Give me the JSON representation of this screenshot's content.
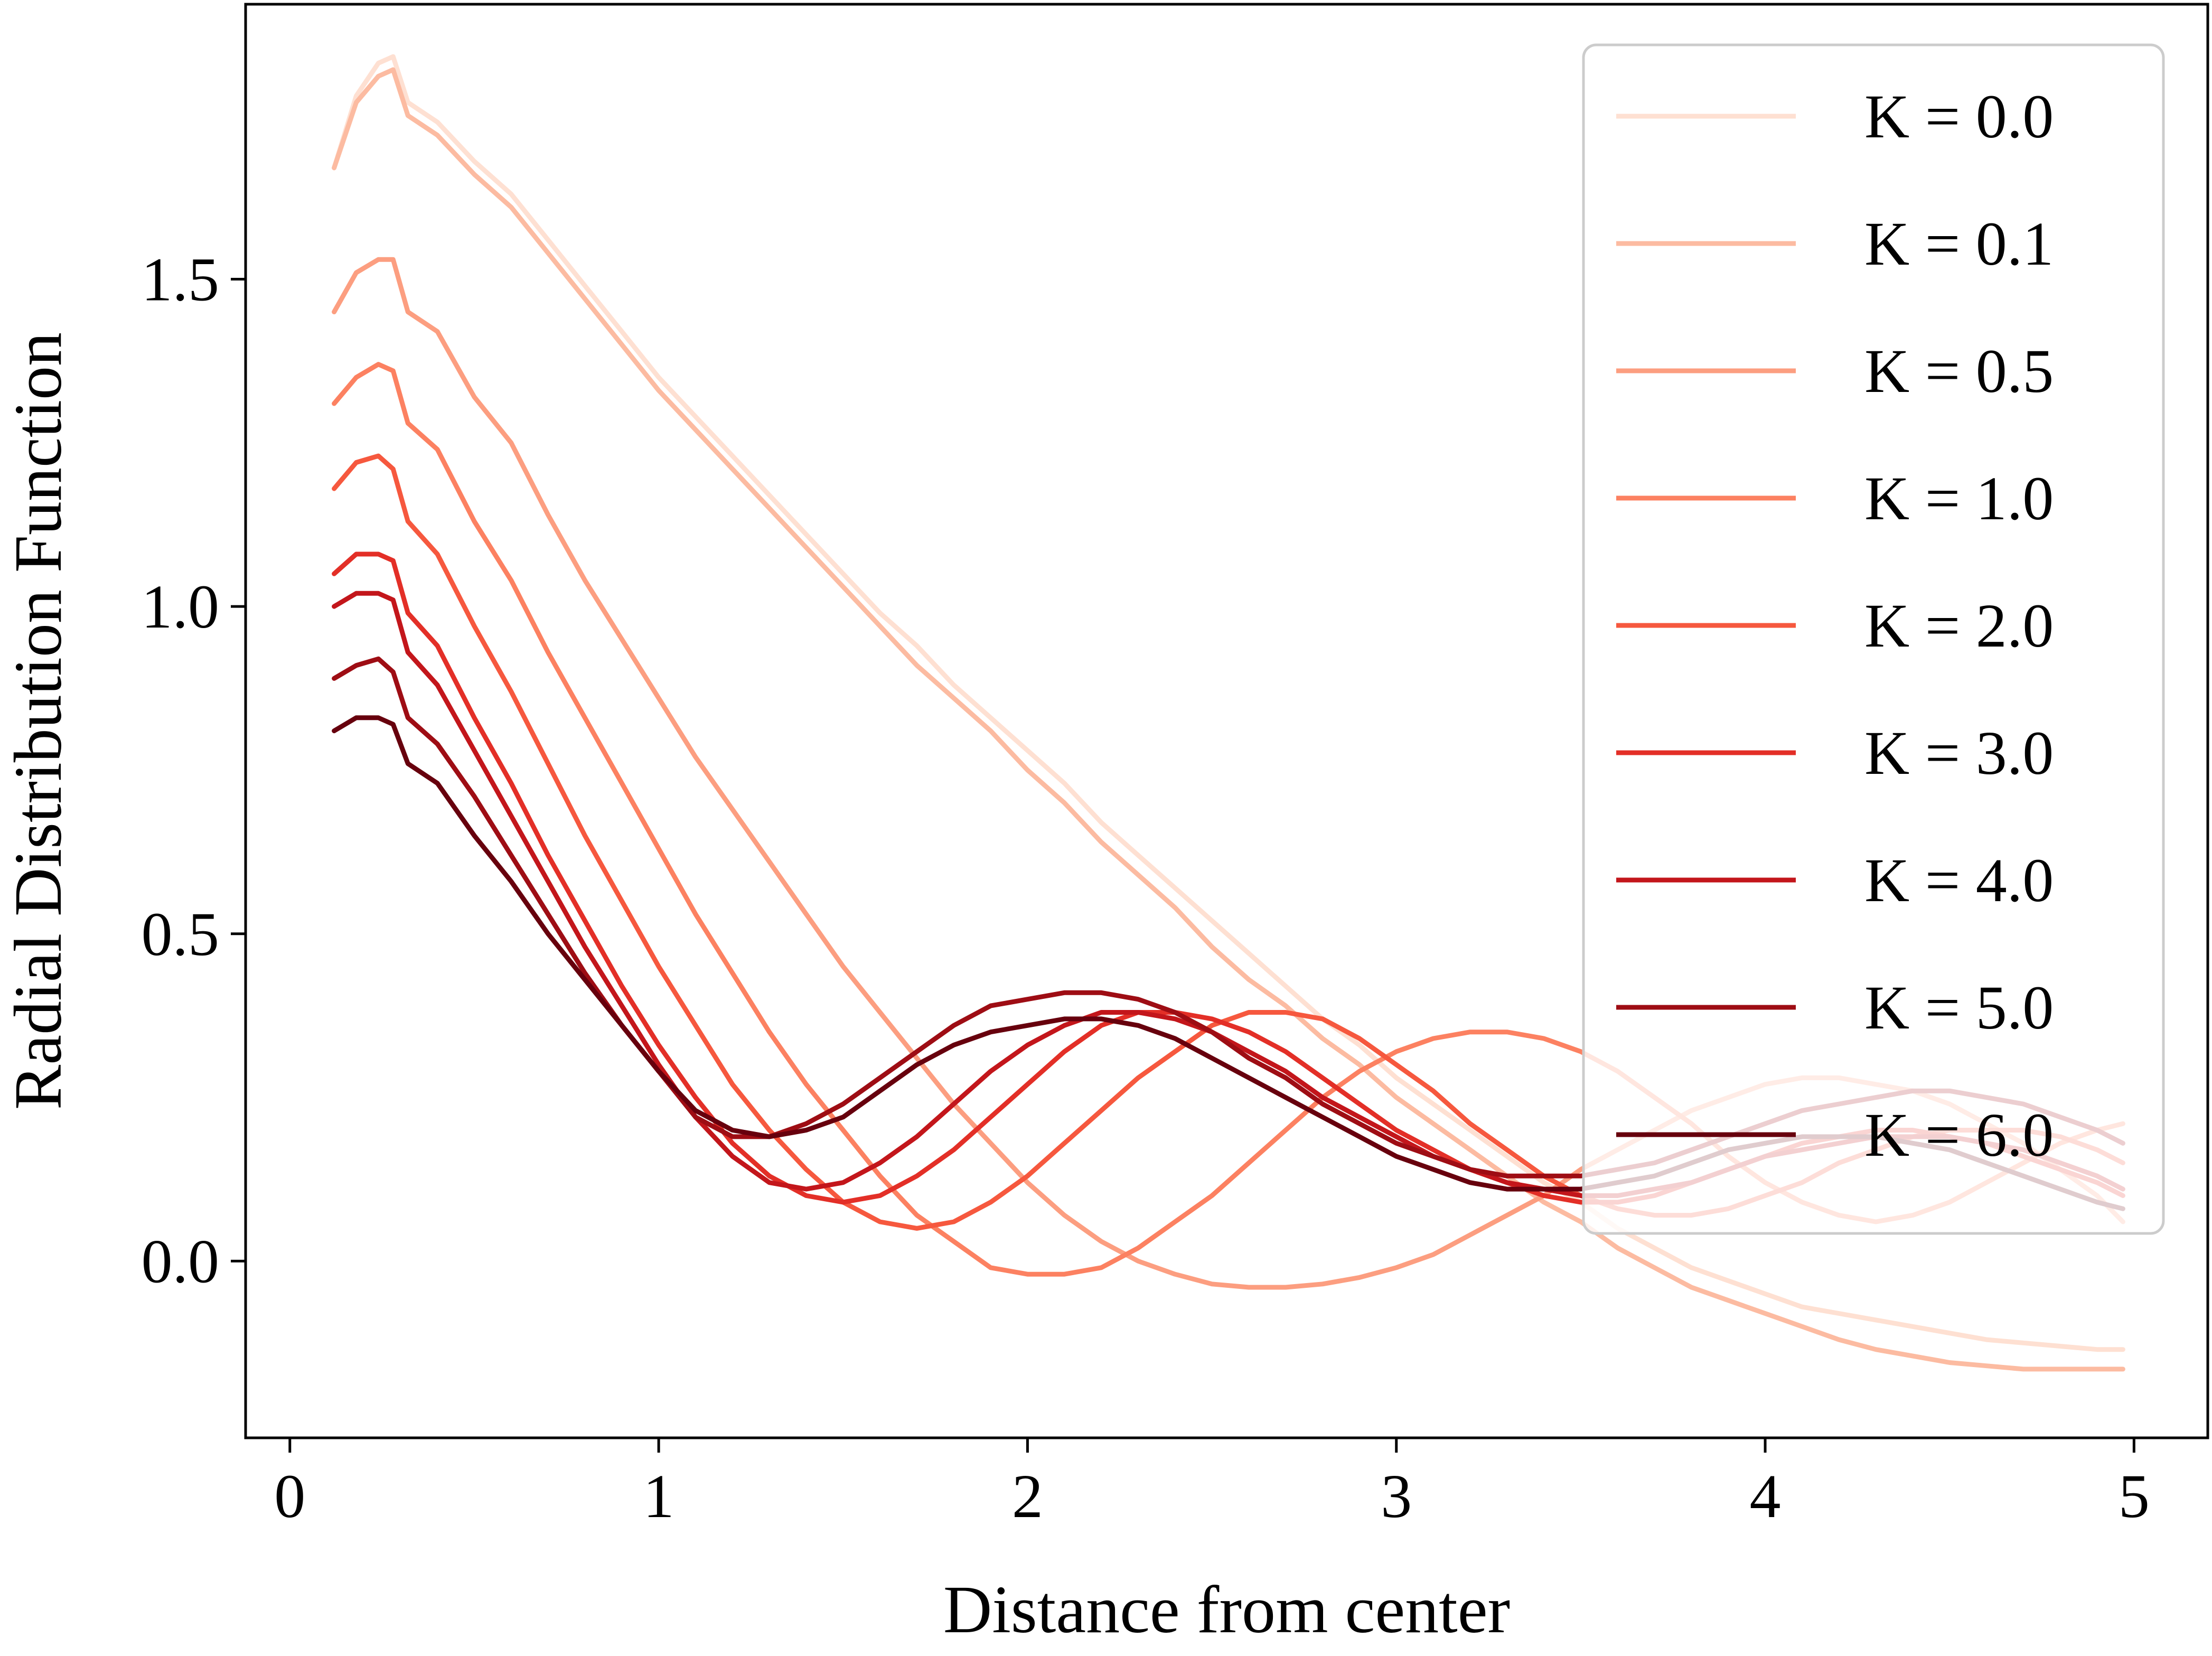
{
  "chart_data": {
    "type": "line",
    "title": "",
    "xlabel": "Distance from center",
    "ylabel": "Radial Distribution Function",
    "xlim": [
      -0.12,
      5.2
    ],
    "ylim": [
      -0.27,
      1.92
    ],
    "x_ticks": [
      0,
      1,
      2,
      3,
      4,
      5
    ],
    "x_tick_labels": [
      "0",
      "1",
      "2",
      "3",
      "4",
      "5"
    ],
    "y_ticks": [
      0.0,
      0.5,
      1.0,
      1.5
    ],
    "y_tick_labels": [
      "0.0",
      "0.5",
      "1.0",
      "1.5"
    ],
    "grid": false,
    "legend_position": "top-right",
    "x": [
      0.12,
      0.18,
      0.24,
      0.28,
      0.32,
      0.4,
      0.5,
      0.6,
      0.7,
      0.8,
      0.9,
      1.0,
      1.1,
      1.2,
      1.3,
      1.4,
      1.5,
      1.6,
      1.7,
      1.8,
      1.9,
      2.0,
      2.1,
      2.2,
      2.3,
      2.4,
      2.5,
      2.6,
      2.7,
      2.8,
      2.9,
      3.0,
      3.1,
      3.2,
      3.3,
      3.4,
      3.5,
      3.6,
      3.7,
      3.8,
      3.9,
      4.0,
      4.1,
      4.2,
      4.3,
      4.4,
      4.5,
      4.6,
      4.7,
      4.8,
      4.9,
      4.97
    ],
    "series": [
      {
        "name": "K = 0.0",
        "color": "#fee0d2",
        "values": [
          1.67,
          1.78,
          1.83,
          1.84,
          1.77,
          1.74,
          1.68,
          1.63,
          1.56,
          1.49,
          1.42,
          1.35,
          1.29,
          1.23,
          1.17,
          1.11,
          1.05,
          0.99,
          0.94,
          0.88,
          0.83,
          0.78,
          0.73,
          0.67,
          0.62,
          0.57,
          0.52,
          0.47,
          0.42,
          0.37,
          0.33,
          0.28,
          0.24,
          0.2,
          0.16,
          0.12,
          0.09,
          0.05,
          0.02,
          -0.01,
          -0.03,
          -0.05,
          -0.07,
          -0.08,
          -0.09,
          -0.1,
          -0.11,
          -0.12,
          -0.125,
          -0.13,
          -0.135,
          -0.135
        ]
      },
      {
        "name": "K = 0.1",
        "color": "#fcbba1",
        "values": [
          1.67,
          1.77,
          1.81,
          1.82,
          1.75,
          1.72,
          1.66,
          1.61,
          1.54,
          1.47,
          1.4,
          1.33,
          1.27,
          1.21,
          1.15,
          1.09,
          1.03,
          0.97,
          0.91,
          0.86,
          0.81,
          0.75,
          0.7,
          0.64,
          0.59,
          0.54,
          0.48,
          0.43,
          0.39,
          0.34,
          0.3,
          0.25,
          0.21,
          0.17,
          0.13,
          0.09,
          0.06,
          0.02,
          -0.01,
          -0.04,
          -0.06,
          -0.08,
          -0.1,
          -0.12,
          -0.135,
          -0.145,
          -0.155,
          -0.16,
          -0.165,
          -0.165,
          -0.165,
          -0.165
        ]
      },
      {
        "name": "K = 0.5",
        "color": "#fc9e80",
        "values": [
          1.45,
          1.51,
          1.53,
          1.53,
          1.45,
          1.42,
          1.32,
          1.25,
          1.14,
          1.04,
          0.95,
          0.86,
          0.77,
          0.69,
          0.61,
          0.53,
          0.45,
          0.38,
          0.31,
          0.24,
          0.18,
          0.12,
          0.07,
          0.03,
          0.0,
          -0.02,
          -0.035,
          -0.04,
          -0.04,
          -0.035,
          -0.025,
          -0.01,
          0.01,
          0.04,
          0.07,
          0.1,
          0.14,
          0.17,
          0.2,
          0.23,
          0.25,
          0.27,
          0.28,
          0.28,
          0.27,
          0.26,
          0.24,
          0.21,
          0.18,
          0.14,
          0.1,
          0.06
        ]
      },
      {
        "name": "K = 1.0",
        "color": "#fc8161",
        "values": [
          1.31,
          1.35,
          1.37,
          1.36,
          1.28,
          1.24,
          1.13,
          1.04,
          0.93,
          0.83,
          0.73,
          0.63,
          0.53,
          0.44,
          0.35,
          0.27,
          0.2,
          0.13,
          0.07,
          0.03,
          -0.01,
          -0.02,
          -0.02,
          -0.01,
          0.02,
          0.06,
          0.1,
          0.15,
          0.2,
          0.25,
          0.29,
          0.32,
          0.34,
          0.35,
          0.35,
          0.34,
          0.32,
          0.29,
          0.25,
          0.21,
          0.16,
          0.12,
          0.09,
          0.07,
          0.06,
          0.07,
          0.09,
          0.12,
          0.15,
          0.18,
          0.2,
          0.21
        ]
      },
      {
        "name": "K = 2.0",
        "color": "#f6583e",
        "values": [
          1.18,
          1.22,
          1.23,
          1.21,
          1.13,
          1.08,
          0.97,
          0.87,
          0.76,
          0.65,
          0.55,
          0.45,
          0.36,
          0.27,
          0.2,
          0.14,
          0.09,
          0.06,
          0.05,
          0.06,
          0.09,
          0.13,
          0.18,
          0.23,
          0.28,
          0.32,
          0.36,
          0.38,
          0.38,
          0.37,
          0.34,
          0.3,
          0.26,
          0.21,
          0.17,
          0.13,
          0.1,
          0.08,
          0.07,
          0.07,
          0.08,
          0.1,
          0.12,
          0.15,
          0.17,
          0.19,
          0.2,
          0.2,
          0.2,
          0.19,
          0.17,
          0.15
        ]
      },
      {
        "name": "K = 3.0",
        "color": "#e32f27",
        "values": [
          1.05,
          1.08,
          1.08,
          1.07,
          0.99,
          0.94,
          0.83,
          0.73,
          0.62,
          0.52,
          0.42,
          0.33,
          0.25,
          0.18,
          0.13,
          0.1,
          0.09,
          0.1,
          0.13,
          0.17,
          0.22,
          0.27,
          0.32,
          0.36,
          0.38,
          0.38,
          0.37,
          0.35,
          0.32,
          0.28,
          0.24,
          0.2,
          0.17,
          0.14,
          0.12,
          0.1,
          0.09,
          0.09,
          0.1,
          0.12,
          0.14,
          0.16,
          0.18,
          0.19,
          0.2,
          0.2,
          0.19,
          0.18,
          0.16,
          0.14,
          0.12,
          0.1
        ]
      },
      {
        "name": "K = 4.0",
        "color": "#c3161b",
        "values": [
          1.0,
          1.02,
          1.02,
          1.01,
          0.93,
          0.88,
          0.78,
          0.68,
          0.58,
          0.48,
          0.39,
          0.3,
          0.22,
          0.16,
          0.12,
          0.11,
          0.12,
          0.15,
          0.19,
          0.24,
          0.29,
          0.33,
          0.36,
          0.38,
          0.38,
          0.37,
          0.35,
          0.32,
          0.29,
          0.25,
          0.22,
          0.19,
          0.16,
          0.14,
          0.12,
          0.11,
          0.1,
          0.1,
          0.11,
          0.12,
          0.14,
          0.16,
          0.17,
          0.18,
          0.19,
          0.19,
          0.19,
          0.18,
          0.17,
          0.15,
          0.13,
          0.11
        ]
      },
      {
        "name": "K = 5.0",
        "color": "#9e0d14",
        "values": [
          0.89,
          0.91,
          0.92,
          0.9,
          0.83,
          0.79,
          0.71,
          0.62,
          0.53,
          0.44,
          0.36,
          0.29,
          0.22,
          0.19,
          0.19,
          0.21,
          0.24,
          0.28,
          0.32,
          0.36,
          0.39,
          0.4,
          0.41,
          0.41,
          0.4,
          0.38,
          0.35,
          0.31,
          0.28,
          0.24,
          0.21,
          0.18,
          0.16,
          0.14,
          0.13,
          0.13,
          0.13,
          0.14,
          0.15,
          0.17,
          0.19,
          0.21,
          0.23,
          0.24,
          0.25,
          0.26,
          0.26,
          0.25,
          0.24,
          0.22,
          0.2,
          0.18
        ]
      },
      {
        "name": "K = 6.0",
        "color": "#67000d",
        "values": [
          0.81,
          0.83,
          0.83,
          0.82,
          0.76,
          0.73,
          0.65,
          0.58,
          0.5,
          0.43,
          0.36,
          0.29,
          0.23,
          0.2,
          0.19,
          0.2,
          0.22,
          0.26,
          0.3,
          0.33,
          0.35,
          0.36,
          0.37,
          0.37,
          0.36,
          0.34,
          0.31,
          0.28,
          0.25,
          0.22,
          0.19,
          0.16,
          0.14,
          0.12,
          0.11,
          0.11,
          0.11,
          0.12,
          0.13,
          0.15,
          0.17,
          0.18,
          0.19,
          0.19,
          0.19,
          0.18,
          0.17,
          0.15,
          0.13,
          0.11,
          0.09,
          0.08
        ]
      }
    ]
  }
}
